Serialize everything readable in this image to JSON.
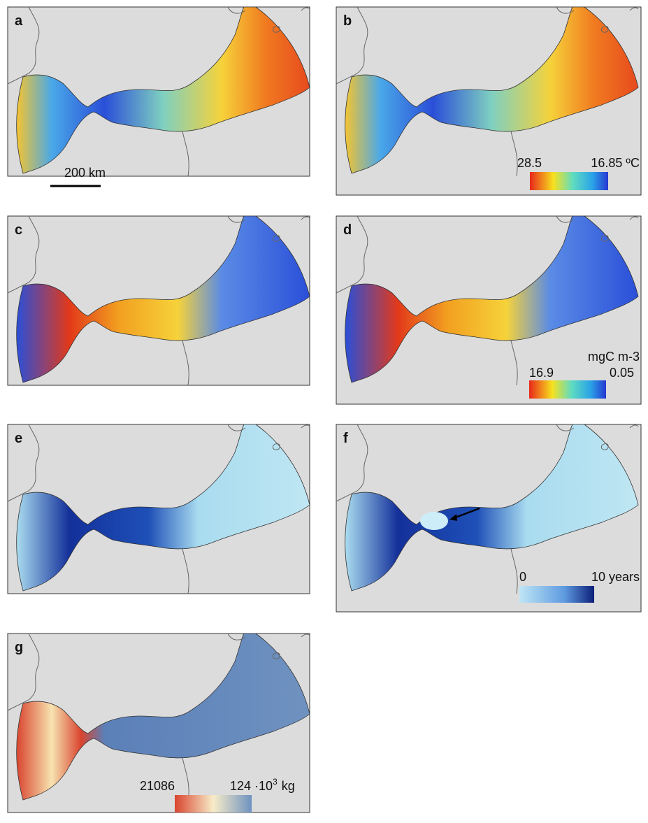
{
  "panels": [
    {
      "label": "a",
      "scale_bar": "200 km"
    },
    {
      "label": "b",
      "colorbar": {
        "min_label": "28.5",
        "max_label": "16.85 ºC"
      }
    },
    {
      "label": "c"
    },
    {
      "label": "d",
      "colorbar": {
        "unit": "mgC m-3",
        "min_label": "16.9",
        "max_label": "0.05"
      }
    },
    {
      "label": "e"
    },
    {
      "label": "f",
      "colorbar": {
        "min_label": "0",
        "max_label": "10 years"
      }
    },
    {
      "label": "g",
      "colorbar": {
        "min_label": "21086",
        "max_main": "124 ·10",
        "max_sup": "3",
        "max_unit": "kg"
      }
    }
  ]
}
